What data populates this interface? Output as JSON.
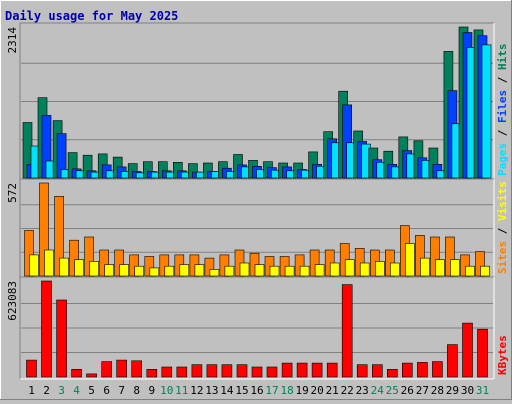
{
  "chart_data": {
    "type": "bar",
    "title": "Daily usage for May 2025",
    "categories": [
      "1",
      "2",
      "3",
      "4",
      "5",
      "6",
      "7",
      "8",
      "9",
      "10",
      "11",
      "12",
      "13",
      "14",
      "15",
      "16",
      "17",
      "18",
      "19",
      "20",
      "21",
      "22",
      "23",
      "24",
      "25",
      "26",
      "27",
      "28",
      "29",
      "30",
      "31"
    ],
    "weekend_days": [
      "3",
      "4",
      "10",
      "11",
      "17",
      "18",
      "24",
      "25",
      "31"
    ],
    "colors": {
      "title": "#0000aa",
      "hits": "#00805c",
      "files": "#0040ff",
      "pages": "#00e0ff",
      "visits": "#ff8000",
      "sites": "#ffff00",
      "kbytes": "#ff0000",
      "weekday_label": "#000000",
      "weekend_label": "#00805c",
      "background": "#c0c0c0",
      "panel": "#c0c0c0"
    },
    "panels": [
      {
        "id": "hits-files-pages",
        "max_label": "2314",
        "ymax": 2314,
        "legend": [
          {
            "text": "Pages",
            "color": "#00e0ff"
          },
          {
            "text": " / ",
            "color": "#000000"
          },
          {
            "text": "Files",
            "color": "#0040ff"
          },
          {
            "text": " / ",
            "color": "#000000"
          },
          {
            "text": "Hits",
            "color": "#00805c"
          }
        ],
        "series": [
          {
            "name": "Hits",
            "color": "#00805c",
            "values": [
              850,
              1230,
              880,
              390,
              350,
              370,
              320,
              220,
              250,
              250,
              240,
              220,
              230,
              250,
              360,
              270,
              250,
              230,
              230,
              400,
              710,
              1330,
              720,
              460,
              410,
              630,
              570,
              460,
              1940,
              2314,
              2270
            ]
          },
          {
            "name": "Files",
            "color": "#0040ff",
            "values": [
              210,
              960,
              680,
              140,
              110,
              200,
              170,
              100,
              100,
              110,
              110,
              90,
              100,
              150,
              200,
              180,
              160,
              170,
              130,
              210,
              600,
              1120,
              560,
              280,
              210,
              420,
              310,
              210,
              1340,
              2230,
              2180
            ]
          },
          {
            "name": "Pages",
            "color": "#00e0ff",
            "values": [
              490,
              260,
              130,
              110,
              90,
              110,
              100,
              80,
              90,
              90,
              90,
              90,
              100,
              100,
              170,
              130,
              120,
              110,
              120,
              180,
              540,
              540,
              520,
              240,
              170,
              370,
              270,
              110,
              830,
              2000,
              2040
            ]
          }
        ]
      },
      {
        "id": "visits-sites",
        "max_label": "572",
        "ymax": 572,
        "legend": [
          {
            "text": "Sites",
            "color": "#ff8000"
          },
          {
            "text": " / ",
            "color": "#000000"
          },
          {
            "text": "Visits",
            "color": "#ffff00"
          }
        ],
        "series": [
          {
            "name": "Visits",
            "color": "#ff8000",
            "values": [
              280,
              572,
              490,
              220,
              240,
              160,
              160,
              130,
              120,
              130,
              130,
              130,
              110,
              130,
              160,
              140,
              120,
              120,
              130,
              160,
              160,
              200,
              170,
              160,
              160,
              310,
              250,
              240,
              240,
              130,
              150
            ]
          },
          {
            "name": "Sites",
            "color": "#ffff00",
            "values": [
              130,
              160,
              110,
              100,
              90,
              70,
              70,
              60,
              50,
              60,
              70,
              70,
              40,
              60,
              80,
              70,
              60,
              60,
              60,
              70,
              80,
              100,
              80,
              90,
              80,
              200,
              110,
              100,
              100,
              60,
              60
            ]
          }
        ]
      },
      {
        "id": "kbytes",
        "max_label": "623083",
        "ymax": 623083,
        "legend": [
          {
            "text": "KBytes",
            "color": "#ff0000"
          }
        ],
        "series": [
          {
            "name": "KBytes",
            "color": "#ff0000",
            "values": [
              110000,
              623083,
              500000,
              50000,
              20000,
              100000,
              110000,
              105000,
              50000,
              65000,
              65000,
              80000,
              80000,
              80000,
              80000,
              65000,
              65000,
              90000,
              90000,
              90000,
              90000,
              600000,
              80000,
              80000,
              50000,
              90000,
              95000,
              100000,
              210000,
              350000,
              310000
            ]
          }
        ]
      }
    ]
  }
}
